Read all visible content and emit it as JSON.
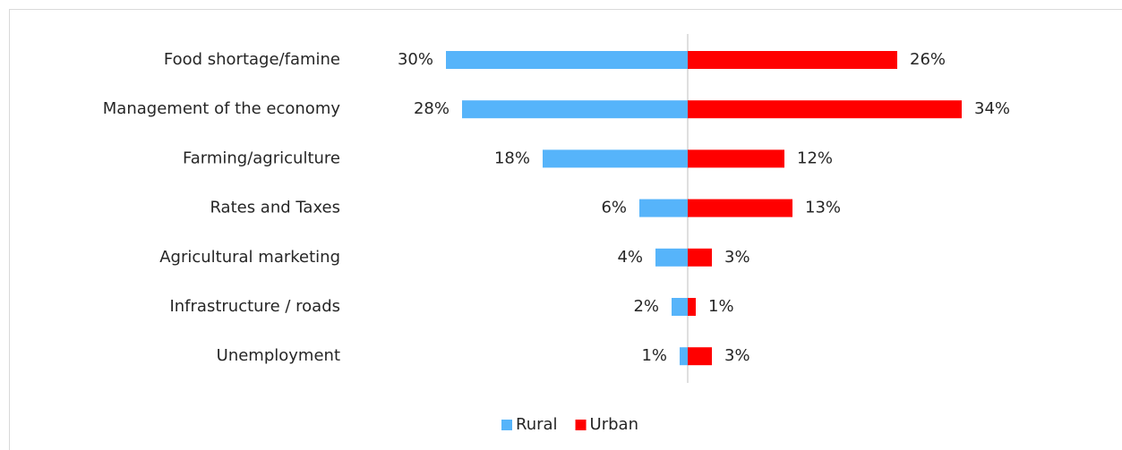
{
  "chart_data": {
    "type": "bar",
    "orientation": "horizontal",
    "categories": [
      "Food shortage/famine",
      "Management of the economy",
      "Farming/agriculture",
      "Rates and Taxes",
      "Agricultural marketing",
      "Infrastructure / roads",
      "Unemployment"
    ],
    "series": [
      {
        "name": "Rural",
        "color": "#56b4fa",
        "values": [
          30,
          28,
          18,
          6,
          4,
          2,
          1
        ],
        "value_labels": [
          "30%",
          "28%",
          "18%",
          "6%",
          "4%",
          "2%",
          "1%"
        ]
      },
      {
        "name": "Urban",
        "color": "#ff0000",
        "values": [
          26,
          34,
          12,
          13,
          3,
          1,
          3
        ],
        "value_labels": [
          "26%",
          "34%",
          "12%",
          "13%",
          "3%",
          "1%",
          "3%"
        ]
      }
    ],
    "legend": "bottom"
  }
}
